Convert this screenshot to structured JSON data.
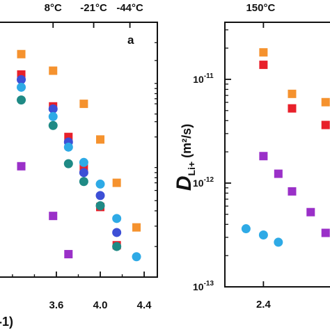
{
  "chart_data": [
    {
      "type": "scatter",
      "panel_label": "a",
      "xlabel_fragment": "-1)",
      "xlim": [
        3.08,
        4.52
      ],
      "x_ticks": [
        "3.6",
        "4.0",
        "4.4"
      ],
      "x_tick_values": [
        3.6,
        4.0,
        4.4
      ],
      "top_ticks": [
        "8°C",
        "-21°C",
        "-44°C"
      ],
      "top_tick_values": [
        3.57,
        3.94,
        4.27
      ],
      "ylim": [
        0,
        1
      ],
      "y_scale": "log",
      "series": [
        {
          "color": "#f5922e",
          "marker": "square",
          "x": [
            3.28,
            3.57,
            3.85,
            4.0,
            4.15,
            4.33
          ],
          "y": [
            0.875,
            0.81,
            0.68,
            0.54,
            0.37,
            0.195
          ]
        },
        {
          "color": "#e8202a",
          "marker": "square",
          "x": [
            3.28,
            3.57,
            3.71,
            3.85,
            4.0,
            4.15
          ],
          "y": [
            0.795,
            0.67,
            0.55,
            0.43,
            0.275,
            0.125
          ]
        },
        {
          "color": "#3d4fd6",
          "marker": "circle",
          "x": [
            3.28,
            3.57,
            3.71,
            3.85,
            4.0,
            4.15
          ],
          "y": [
            0.775,
            0.66,
            0.53,
            0.41,
            0.32,
            0.175
          ]
        },
        {
          "color": "#2eaae6",
          "marker": "circle",
          "x": [
            3.28,
            3.57,
            3.71,
            3.85,
            4.0,
            4.15,
            4.33
          ],
          "y": [
            0.745,
            0.63,
            0.51,
            0.45,
            0.365,
            0.23,
            0.08
          ]
        },
        {
          "color": "#1f8a85",
          "marker": "circle",
          "x": [
            3.28,
            3.57,
            3.71,
            3.85,
            4.0,
            4.15
          ],
          "y": [
            0.695,
            0.595,
            0.445,
            0.375,
            0.28,
            0.12
          ]
        },
        {
          "color": "#9a30c8",
          "marker": "square",
          "x": [
            3.28,
            3.57,
            3.71
          ],
          "y": [
            0.435,
            0.24,
            0.09
          ]
        }
      ]
    },
    {
      "type": "scatter",
      "top_ticks": [
        "150°C"
      ],
      "top_tick_values": [
        2.4
      ],
      "x_ticks": [
        "2.4"
      ],
      "x_tick_values": [
        2.4
      ],
      "xlim": [
        2.09,
        2.98
      ],
      "ylim_exponents": [
        -13,
        -10.45
      ],
      "y_scale": "log",
      "ylabel_main": "D",
      "ylabel_sub": "Li+",
      "ylabel_units": "(m²/s)",
      "y_ticks": [
        {
          "base": "10",
          "exp": "-11",
          "value": -11
        },
        {
          "base": "10",
          "exp": "-12",
          "value": -12
        },
        {
          "base": "10",
          "exp": "-13",
          "value": -13
        }
      ],
      "series": [
        {
          "color": "#f5922e",
          "marker": "square",
          "x": [
            2.4,
            2.63,
            2.9
          ],
          "y_log10": [
            -10.74,
            -11.14,
            -11.22
          ]
        },
        {
          "color": "#e8202a",
          "marker": "square",
          "x": [
            2.4,
            2.63,
            2.9
          ],
          "y_log10": [
            -10.86,
            -11.28,
            -11.44
          ]
        },
        {
          "color": "#9a30c8",
          "marker": "square",
          "x": [
            2.4,
            2.52,
            2.63,
            2.78,
            2.9
          ],
          "y_log10": [
            -11.74,
            -11.91,
            -12.08,
            -12.28,
            -12.48
          ]
        },
        {
          "color": "#2eaae6",
          "marker": "circle",
          "x": [
            2.26,
            2.4,
            2.52
          ],
          "y_log10": [
            -12.44,
            -12.5,
            -12.57
          ]
        }
      ]
    }
  ]
}
